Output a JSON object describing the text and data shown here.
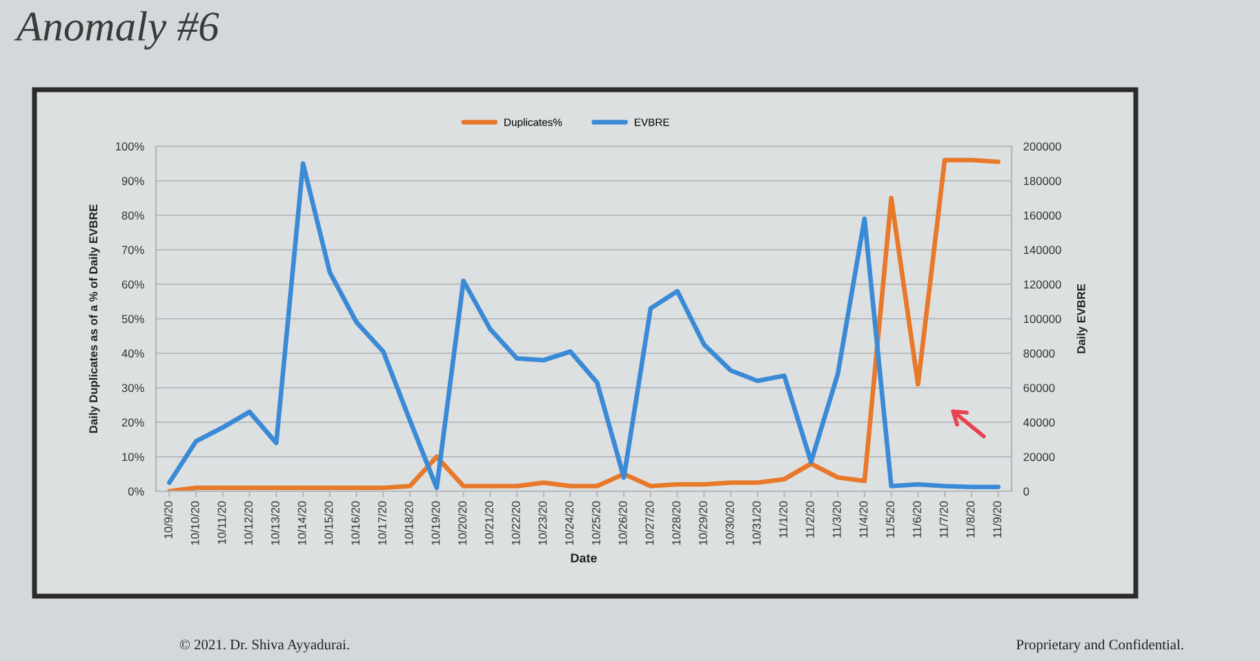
{
  "chart_data": {
    "type": "line",
    "title": "Anomaly #6",
    "xlabel": "Date",
    "ylabel": "Daily Duplicates as of a % of Daily EVBRE",
    "y2label": "Daily EVBRE",
    "categories": [
      "10/9/20",
      "10/10/20",
      "10/11/20",
      "10/12/20",
      "10/13/20",
      "10/14/20",
      "10/15/20",
      "10/16/20",
      "10/17/20",
      "10/18/20",
      "10/19/20",
      "10/20/20",
      "10/21/20",
      "10/22/20",
      "10/23/20",
      "10/24/20",
      "10/25/20",
      "10/26/20",
      "10/27/20",
      "10/28/20",
      "10/29/20",
      "10/30/20",
      "10/31/20",
      "11/1/20",
      "11/2/20",
      "11/3/20",
      "11/4/20",
      "11/5/20",
      "11/6/20",
      "11/7/20",
      "11/8/20",
      "11/9/20"
    ],
    "series": [
      {
        "name": "Duplicates%",
        "color": "#e8782a",
        "values": [
          0,
          1,
          1,
          1,
          1,
          1,
          1,
          1,
          1,
          1.5,
          10,
          1.5,
          1.5,
          1.5,
          2.5,
          1.5,
          1.5,
          5,
          1.5,
          2,
          2,
          2.5,
          2.5,
          3.5,
          8,
          4,
          3,
          85,
          31,
          96,
          96,
          95.5
        ]
      },
      {
        "name": "EVBRE",
        "color": "#3b8ad6",
        "axis": "y2",
        "values": [
          5000,
          29000,
          37000,
          46000,
          28000,
          190000,
          127000,
          98000,
          81000,
          41000,
          2000,
          122000,
          94000,
          77000,
          76000,
          81000,
          63000,
          8000,
          106000,
          116000,
          85000,
          70000,
          64000,
          67000,
          17000,
          68000,
          158000,
          3000,
          4000,
          3000,
          2500,
          2500
        ]
      }
    ],
    "ylim": [
      0,
      100
    ],
    "yticks": [
      {
        "value": 0,
        "label": "0%"
      },
      {
        "value": 10,
        "label": "10%"
      },
      {
        "value": 20,
        "label": "20%"
      },
      {
        "value": 30,
        "label": "30%"
      },
      {
        "value": 40,
        "label": "40%"
      },
      {
        "value": 50,
        "label": "50%"
      },
      {
        "value": 60,
        "label": "60%"
      },
      {
        "value": 70,
        "label": "70%"
      },
      {
        "value": 80,
        "label": "80%"
      },
      {
        "value": 90,
        "label": "90%"
      },
      {
        "value": 100,
        "label": "100%"
      }
    ],
    "y2lim": [
      0,
      200000
    ],
    "y2ticks": [
      0,
      20000,
      40000,
      60000,
      80000,
      100000,
      120000,
      140000,
      160000,
      180000,
      200000
    ],
    "grid": "y",
    "legend": "top",
    "annotations": [
      "© 2021. Dr. Shiva Ayyadurai.",
      "Proprietary and Confidential."
    ]
  }
}
